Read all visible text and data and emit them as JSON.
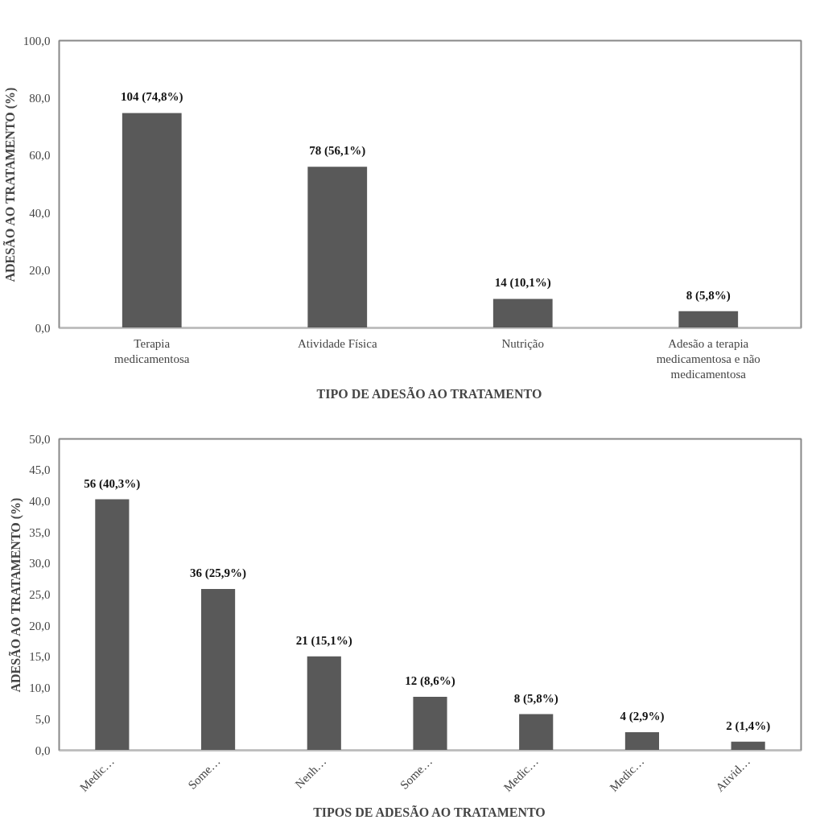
{
  "chart_data": [
    {
      "type": "bar",
      "xlabel": "TIPO DE ADESÃO AO TRATAMENTO",
      "ylabel": "ADESÃO AO TRATAMENTO (%)",
      "categories": [
        "Terapia medicamentosa",
        "Atividade Física",
        "Nutrição",
        "Adesão a terapia medicamentosa e não medicamentosa"
      ],
      "values": [
        74.8,
        56.1,
        10.1,
        5.8
      ],
      "color": "#595959",
      "value_labels": [
        "104 (74,8%)",
        "78 (56,1%)",
        "14 (10,1%)",
        "8 (5,8%)"
      ],
      "ylim": [
        0,
        100
      ],
      "yticks": [
        {
          "value": 0,
          "label": "0,0"
        },
        {
          "value": 20,
          "label": "20,0"
        },
        {
          "value": 40,
          "label": "40,0"
        },
        {
          "value": 60,
          "label": "60,0"
        },
        {
          "value": 80,
          "label": "80,0"
        },
        {
          "value": 100,
          "label": "100,0"
        }
      ],
      "grid": false
    },
    {
      "type": "bar",
      "xlabel": "TIPOS DE ADESÃO AO TRATAMENTO",
      "ylabel": "ADESÃO AO TRATAMENTO (%)",
      "categories": [
        "Medic…",
        "Some…",
        "Nenh…",
        "Some…",
        "Medic…",
        "Medic…",
        "Ativid…"
      ],
      "values": [
        40.3,
        25.9,
        15.1,
        8.6,
        5.8,
        2.9,
        1.4
      ],
      "color": "#595959",
      "value_labels": [
        "56 (40,3%)",
        "36 (25,9%)",
        "21 (15,1%)",
        "12 (8,6%)",
        "8 (5,8%)",
        "4 (2,9%)",
        "2 (1,4%)"
      ],
      "ylim": [
        0,
        50
      ],
      "yticks": [
        {
          "value": 0,
          "label": "0,0"
        },
        {
          "value": 5,
          "label": "5,0"
        },
        {
          "value": 10,
          "label": "10,0"
        },
        {
          "value": 15,
          "label": "15,0"
        },
        {
          "value": 20,
          "label": "20,0"
        },
        {
          "value": 25,
          "label": "25,0"
        },
        {
          "value": 30,
          "label": "30,0"
        },
        {
          "value": 35,
          "label": "35,0"
        },
        {
          "value": 40,
          "label": "40,0"
        },
        {
          "value": 45,
          "label": "45,0"
        },
        {
          "value": 50,
          "label": "50,0"
        }
      ],
      "grid": false
    }
  ]
}
